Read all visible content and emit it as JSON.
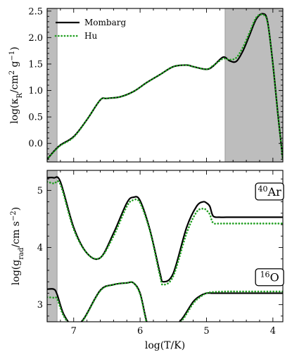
{
  "colors": {
    "mombarg": "#000000",
    "hu": "#1f9e1f",
    "shade": "#bdbdbd"
  },
  "chart_data": [
    {
      "type": "line",
      "xlabel": "",
      "ylabel": "log(κ_R/cm² g⁻¹)",
      "ylabel_parts": {
        "pre": "log(κ",
        "sub": "R",
        "mid": "/cm",
        "sup1": "2",
        "mid2": " g",
        "sup2": "−1",
        "post": ")"
      },
      "xlim": [
        7.4,
        3.85
      ],
      "ylim": [
        -0.35,
        2.55
      ],
      "yticks": [
        0.0,
        0.5,
        1.0,
        1.5,
        2.0,
        2.5
      ],
      "ytick_labels": [
        "0.0",
        "0.5",
        "1.0",
        "1.5",
        "2.0",
        "2.5"
      ],
      "xticks": [
        7,
        6,
        5,
        4
      ],
      "shaded": [
        [
          7.4,
          7.25
        ],
        [
          4.72,
          3.85
        ]
      ],
      "legend": {
        "placement": "top-left",
        "entries": [
          "Mombarg",
          "Hu"
        ]
      },
      "series": [
        {
          "name": "Mombarg",
          "style": "solid",
          "x": [
            7.4,
            7.3,
            7.2,
            7.0,
            6.8,
            6.6,
            6.5,
            6.3,
            6.1,
            5.9,
            5.7,
            5.5,
            5.3,
            5.2,
            5.0,
            4.9,
            4.75,
            4.65,
            4.55,
            4.45,
            4.35,
            4.25,
            4.15,
            4.08,
            4.0,
            3.92,
            3.85
          ],
          "y": [
            -0.3,
            -0.15,
            -0.03,
            0.13,
            0.45,
            0.82,
            0.85,
            0.88,
            0.98,
            1.15,
            1.3,
            1.45,
            1.48,
            1.45,
            1.4,
            1.46,
            1.63,
            1.56,
            1.55,
            1.75,
            2.05,
            2.35,
            2.45,
            2.3,
            1.5,
            0.5,
            -0.3
          ]
        },
        {
          "name": "Hu",
          "style": "dotted",
          "x": [
            7.4,
            7.3,
            7.2,
            7.0,
            6.8,
            6.6,
            6.5,
            6.3,
            6.1,
            5.9,
            5.7,
            5.5,
            5.3,
            5.2,
            5.0,
            4.9,
            4.75,
            4.65,
            4.55,
            4.45,
            4.35,
            4.25,
            4.15,
            4.08,
            4.0,
            3.92,
            3.85
          ],
          "y": [
            -0.3,
            -0.16,
            -0.04,
            0.12,
            0.45,
            0.82,
            0.85,
            0.88,
            0.98,
            1.15,
            1.3,
            1.45,
            1.48,
            1.45,
            1.4,
            1.47,
            1.6,
            1.58,
            1.62,
            1.82,
            2.1,
            2.38,
            2.43,
            2.28,
            1.5,
            0.5,
            -0.3
          ]
        }
      ]
    },
    {
      "type": "line",
      "xlabel": "log(T/K)",
      "ylabel": "log(g_rad/cm s⁻²)",
      "ylabel_parts": {
        "pre": "log(g",
        "sub": "rad",
        "mid": "/cm s",
        "sup1": "−2",
        "post": ")"
      },
      "xlim": [
        7.4,
        3.85
      ],
      "ylim": [
        2.7,
        5.35
      ],
      "yticks": [
        3,
        4,
        5
      ],
      "ytick_labels": [
        "3",
        "4",
        "5"
      ],
      "xticks": [
        7,
        6,
        5,
        4
      ],
      "xtick_labels": [
        "7",
        "6",
        "5",
        "4"
      ],
      "shaded": [
        [
          7.4,
          7.25
        ]
      ],
      "annotations": [
        {
          "label_sup": "40",
          "label": "Ar",
          "x": 4.05,
          "y": 4.98
        },
        {
          "label_sup": "16",
          "label": "O",
          "x": 4.05,
          "y": 3.48
        }
      ],
      "series": [
        {
          "name": "Mombarg",
          "style": "solid",
          "element": "Ar",
          "x": [
            7.4,
            7.3,
            7.2,
            7.0,
            6.8,
            6.6,
            6.4,
            6.2,
            6.1,
            6.0,
            5.85,
            5.7,
            5.65,
            5.5,
            5.3,
            5.15,
            5.05,
            5.0,
            4.95,
            4.9,
            4.8,
            4.7,
            4.5,
            4.2,
            3.85
          ],
          "y": [
            5.22,
            5.22,
            5.15,
            4.35,
            3.9,
            3.82,
            4.25,
            4.78,
            4.88,
            4.82,
            4.3,
            3.55,
            3.4,
            3.55,
            4.35,
            4.72,
            4.8,
            4.78,
            4.72,
            4.55,
            4.53,
            4.53,
            4.53,
            4.53,
            4.53
          ]
        },
        {
          "name": "Hu",
          "style": "dotted",
          "element": "Ar",
          "x": [
            7.4,
            7.3,
            7.2,
            7.0,
            6.8,
            6.6,
            6.4,
            6.2,
            6.1,
            6.0,
            5.85,
            5.7,
            5.65,
            5.5,
            5.3,
            5.15,
            5.05,
            5.0,
            4.95,
            4.9,
            4.8,
            4.7,
            4.5,
            4.2,
            3.85
          ],
          "y": [
            5.15,
            5.12,
            5.1,
            4.32,
            3.9,
            3.82,
            4.2,
            4.72,
            4.83,
            4.78,
            4.28,
            3.5,
            3.35,
            3.5,
            4.25,
            4.62,
            4.68,
            4.65,
            4.58,
            4.43,
            4.42,
            4.42,
            4.42,
            4.42,
            4.42
          ]
        },
        {
          "name": "Mombarg",
          "style": "solid",
          "element": "O",
          "x": [
            7.4,
            7.3,
            7.25,
            7.15,
            7.0,
            6.85,
            6.6,
            6.4,
            6.2,
            6.1,
            6.0,
            5.9,
            5.8,
            5.7,
            5.55,
            5.45,
            5.35,
            5.2,
            5.1,
            5.0,
            4.9,
            4.7,
            4.5,
            4.2,
            3.85
          ],
          "y": [
            3.27,
            3.27,
            3.18,
            2.83,
            2.62,
            2.75,
            3.25,
            3.35,
            3.38,
            3.38,
            3.2,
            2.7,
            2.42,
            2.45,
            2.6,
            2.65,
            2.78,
            3.05,
            3.15,
            3.2,
            3.2,
            3.2,
            3.2,
            3.2,
            3.2
          ]
        },
        {
          "name": "Hu",
          "style": "dotted",
          "element": "O",
          "x": [
            7.4,
            7.3,
            7.25,
            7.15,
            7.0,
            6.85,
            6.6,
            6.4,
            6.2,
            6.1,
            6.0,
            5.9,
            5.8,
            5.7,
            5.55,
            5.45,
            5.35,
            5.2,
            5.1,
            5.0,
            4.9,
            4.7,
            4.5,
            4.2,
            3.85
          ],
          "y": [
            3.13,
            3.12,
            3.1,
            2.8,
            2.6,
            2.74,
            3.24,
            3.35,
            3.38,
            3.38,
            3.18,
            2.68,
            2.4,
            2.43,
            2.58,
            2.63,
            2.75,
            3.02,
            3.13,
            3.2,
            3.22,
            3.23,
            3.23,
            3.23,
            3.23
          ]
        }
      ]
    }
  ]
}
